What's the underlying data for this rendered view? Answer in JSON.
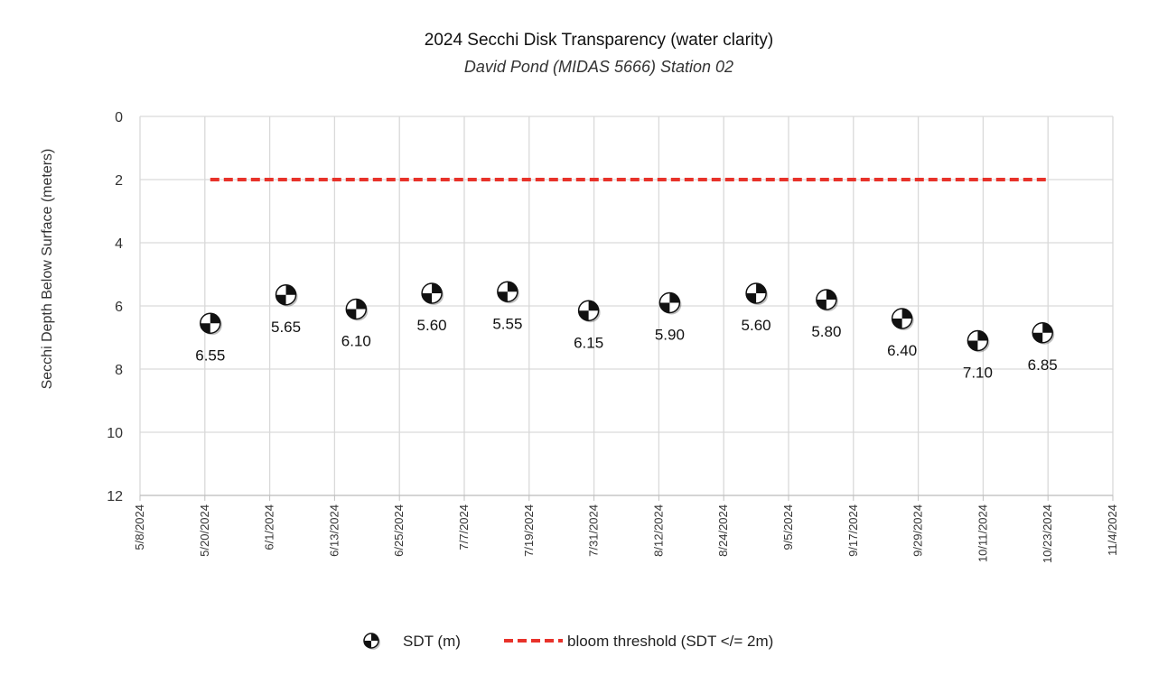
{
  "chart_data": {
    "type": "scatter",
    "title": "2024 Secchi Disk Transparency (water clarity)",
    "subtitle": "David Pond (MIDAS 5666) Station 02",
    "ylabel": "Secchi Depth Below Surface (meters)",
    "xlabel": "",
    "y_inverted": true,
    "ylim": [
      0,
      12
    ],
    "yticks": [
      "0",
      "2",
      "4",
      "6",
      "8",
      "10",
      "12"
    ],
    "xlim": [
      "2024-05-08",
      "2024-11-04"
    ],
    "xticks": [
      "5/8/2024",
      "5/20/2024",
      "6/1/2024",
      "6/13/2024",
      "6/25/2024",
      "7/7/2024",
      "7/19/2024",
      "7/31/2024",
      "8/12/2024",
      "8/24/2024",
      "9/5/2024",
      "9/17/2024",
      "9/29/2024",
      "10/11/2024",
      "10/23/2024",
      "11/4/2024"
    ],
    "grid": true,
    "legend_position": "bottom",
    "series": [
      {
        "name": "SDT (m)",
        "marker": "secchi-disk",
        "points": [
          {
            "x": "2024-05-21",
            "y": 6.55,
            "label": "6.55"
          },
          {
            "x": "2024-06-04",
            "y": 5.65,
            "label": "5.65"
          },
          {
            "x": "2024-06-17",
            "y": 6.1,
            "label": "6.10"
          },
          {
            "x": "2024-07-01",
            "y": 5.6,
            "label": "5.60"
          },
          {
            "x": "2024-07-15",
            "y": 5.55,
            "label": "5.55"
          },
          {
            "x": "2024-07-30",
            "y": 6.15,
            "label": "6.15"
          },
          {
            "x": "2024-08-14",
            "y": 5.9,
            "label": "5.90"
          },
          {
            "x": "2024-08-30",
            "y": 5.6,
            "label": "5.60"
          },
          {
            "x": "2024-09-12",
            "y": 5.8,
            "label": "5.80"
          },
          {
            "x": "2024-09-26",
            "y": 6.4,
            "label": "6.40"
          },
          {
            "x": "2024-10-10",
            "y": 7.1,
            "label": "7.10"
          },
          {
            "x": "2024-10-22",
            "y": 6.85,
            "label": "6.85"
          }
        ]
      },
      {
        "name": "bloom threshold (SDT </= 2m)",
        "style": "dashed",
        "color": "#e8322a",
        "points": [
          {
            "x": "2024-05-21",
            "y": 2
          },
          {
            "x": "2024-10-23",
            "y": 2
          }
        ]
      }
    ]
  }
}
